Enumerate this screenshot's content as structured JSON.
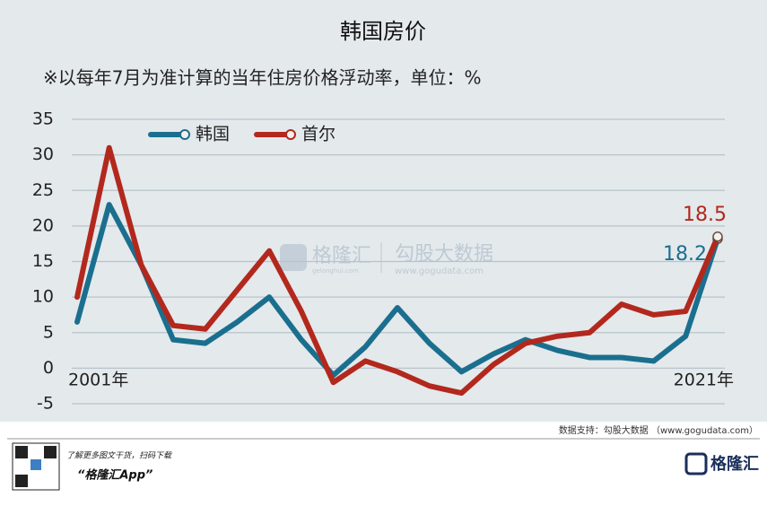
{
  "chart_data": {
    "type": "line",
    "title": "韩国房价",
    "subtitle": "※以每年7月为准计算的当年住房价格浮动率，单位：%",
    "categories": [
      "2001年",
      null,
      null,
      null,
      null,
      null,
      null,
      null,
      null,
      null,
      null,
      null,
      null,
      null,
      null,
      null,
      null,
      null,
      null,
      null,
      "2021年"
    ],
    "series": [
      {
        "name": "韩国",
        "color": "#1b6f8e",
        "values": [
          6.5,
          23,
          14.5,
          4,
          3.5,
          6.5,
          10,
          4,
          -1,
          3,
          8.5,
          3.5,
          -0.5,
          2,
          4,
          2.5,
          1.5,
          1.5,
          1,
          4.5,
          18.2
        ]
      },
      {
        "name": "首尔",
        "color": "#b3281d",
        "values": [
          10,
          31,
          14.5,
          6,
          5.5,
          11,
          16.5,
          8,
          -2,
          1,
          -0.5,
          -2.5,
          -3.5,
          0.5,
          3.5,
          4.5,
          5,
          9,
          7.5,
          8,
          18.5
        ]
      }
    ],
    "ylim": [
      -5,
      35
    ],
    "yticks": [
      -5,
      0,
      5,
      10,
      15,
      20,
      25,
      30,
      35
    ],
    "grid": true,
    "legend": "top-left"
  },
  "watermark": {
    "brand": "格隆汇",
    "site_small": "gelonghui.com",
    "partner": "勾股大数据",
    "partner_site": "www.gogudata.com"
  },
  "source": "数据支持：勾股大数据 （www.gogudata.com）",
  "footer": {
    "promo": "了解更多图文干货，扫码下载",
    "app": "“格隆汇App”",
    "logo": "格隆汇"
  }
}
